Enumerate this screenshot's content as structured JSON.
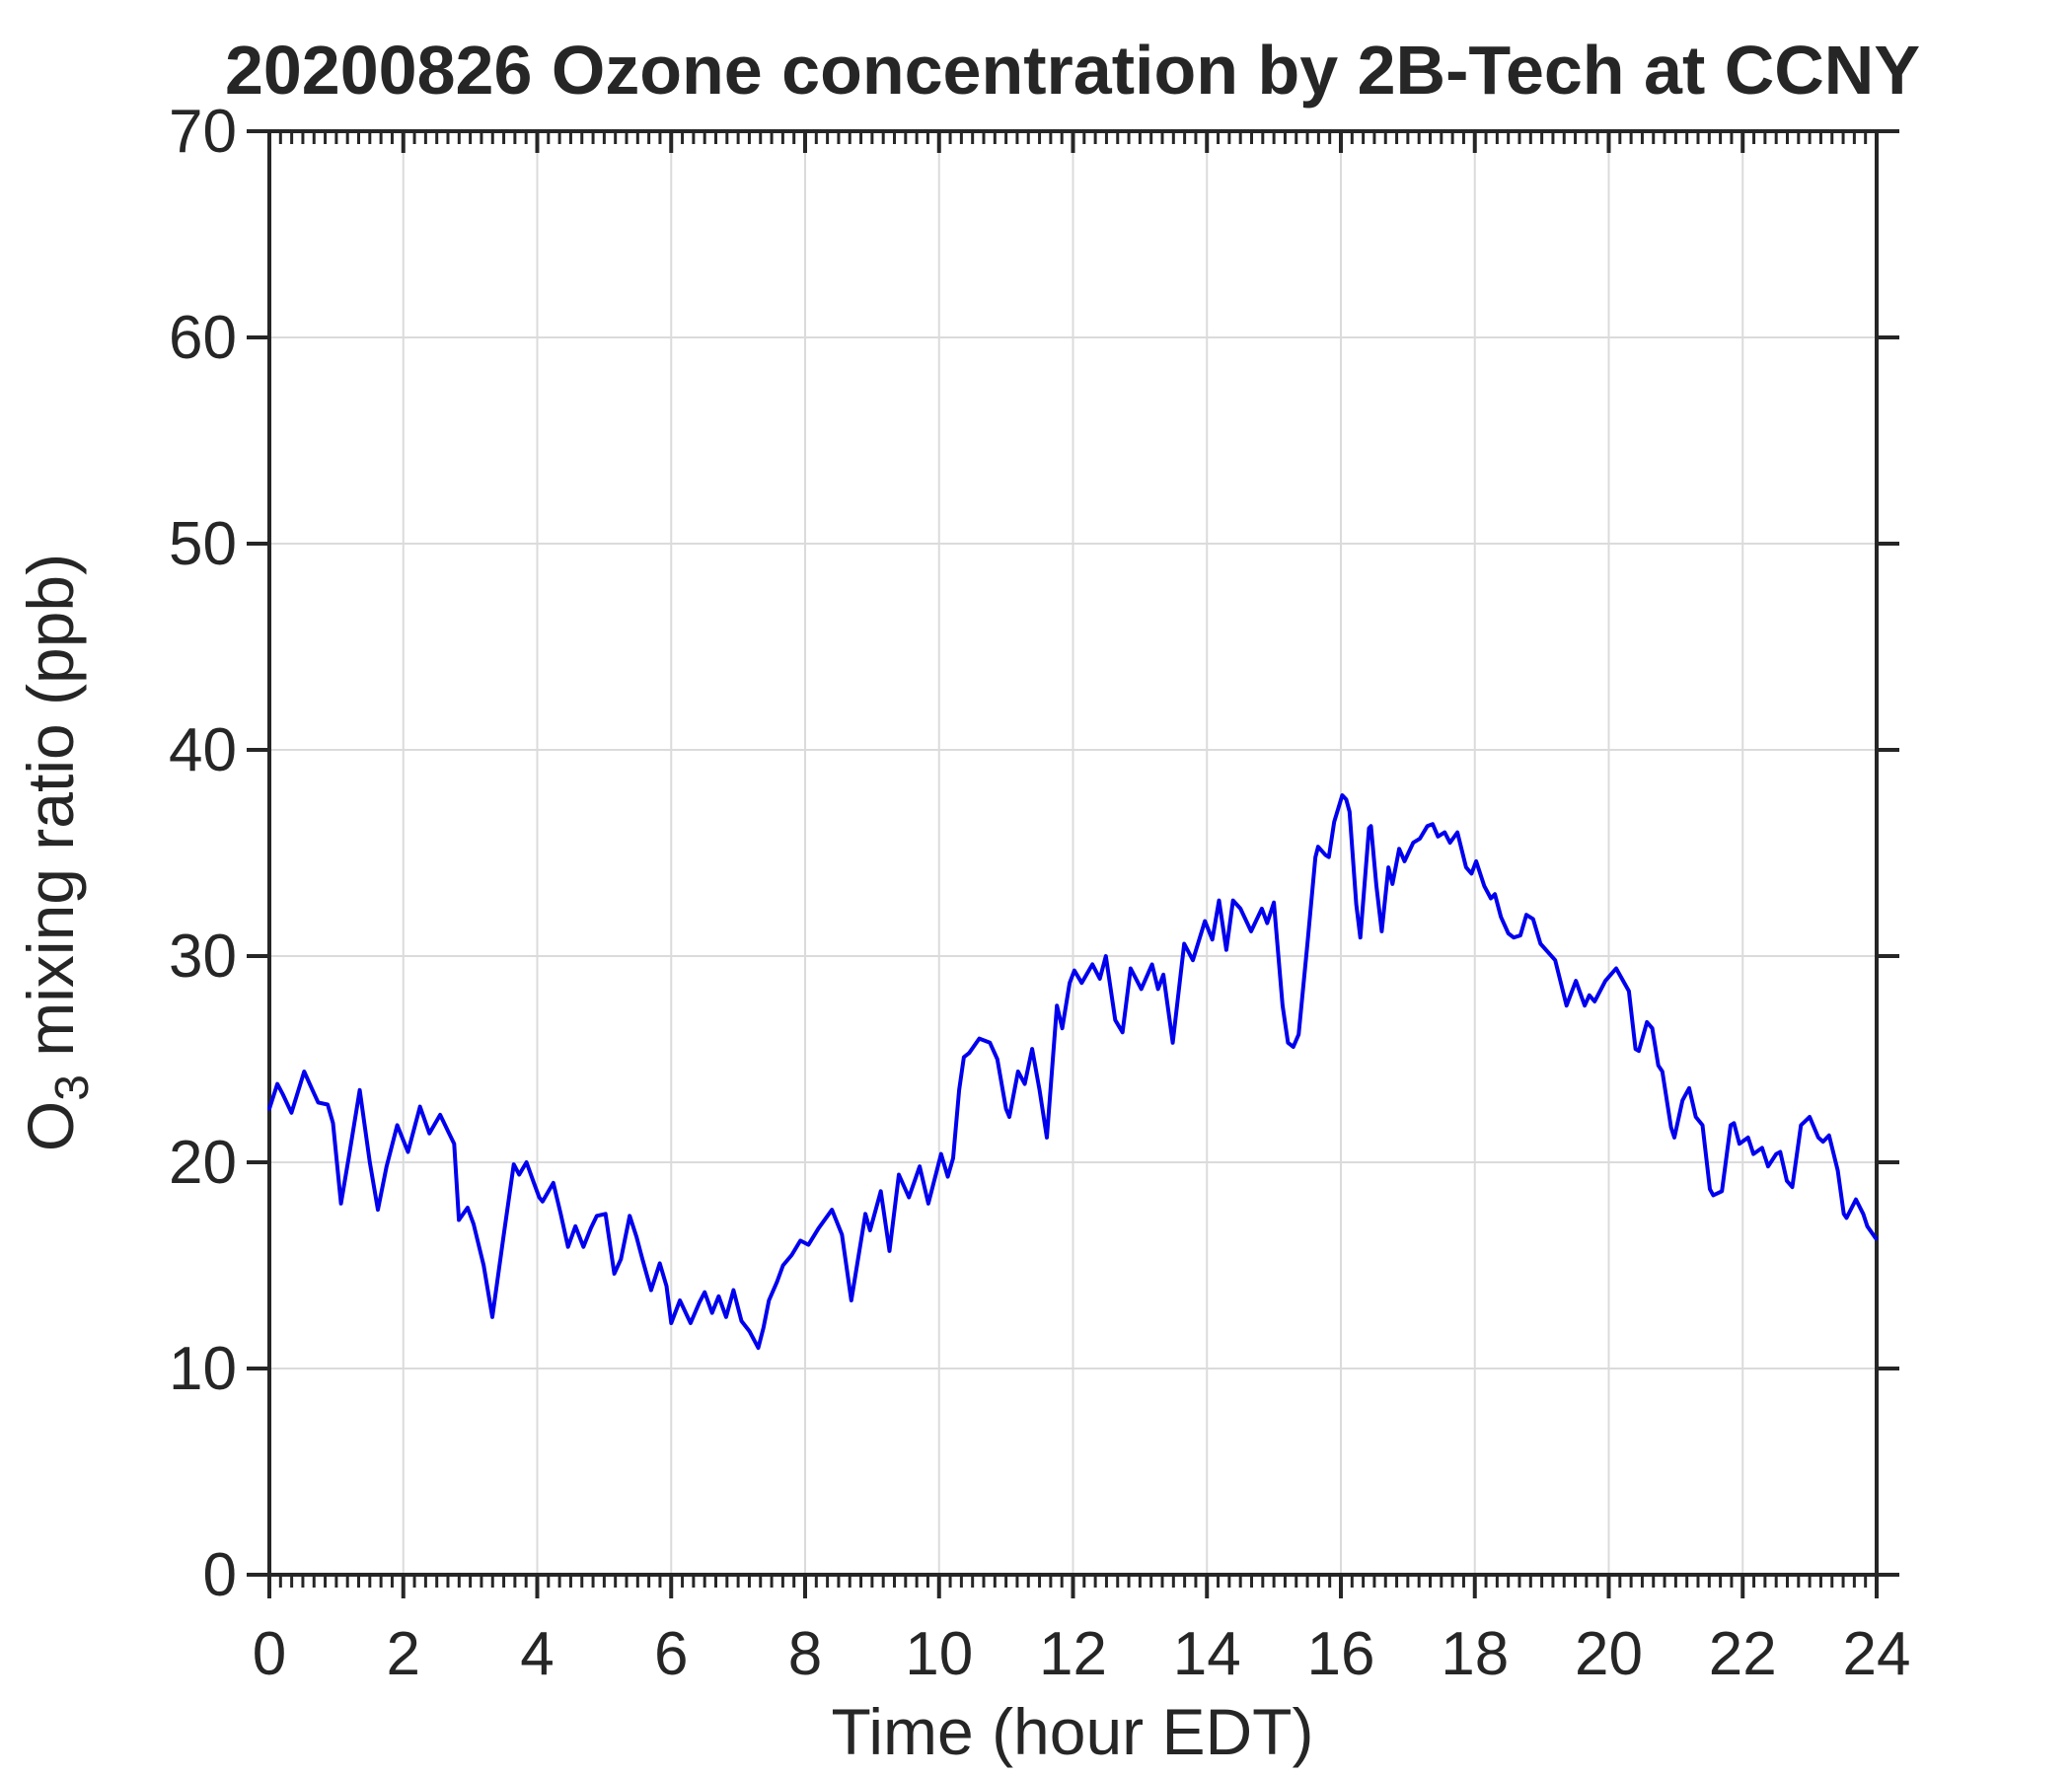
{
  "chart_data": {
    "type": "line",
    "title": "20200826 Ozone concentration by 2B-Tech at CCNY",
    "xlabel": "Time (hour EDT)",
    "ylabel": "O3 mixing ratio (ppb)",
    "ylabel_parts": {
      "prefix": "O",
      "sub": "3",
      "suffix": " mixing ratio (ppb)"
    },
    "xlim": [
      0,
      24
    ],
    "ylim": [
      0,
      70
    ],
    "xticks": [
      0,
      2,
      4,
      6,
      8,
      10,
      12,
      14,
      16,
      18,
      20,
      22,
      24
    ],
    "yticks": [
      0,
      10,
      20,
      30,
      40,
      50,
      60,
      70
    ],
    "x_minor_ticks_per_hour": 6,
    "grid": true,
    "legend_position": "none",
    "colors": {
      "line": "#0000EE",
      "grid": "#DBDBDB",
      "axis": "#262626",
      "text": "#262626",
      "background": "#FFFFFF"
    },
    "series": [
      {
        "name": "O3 mixing ratio",
        "x": [
          0.0,
          0.12,
          0.2,
          0.33,
          0.52,
          0.63,
          0.73,
          0.87,
          0.95,
          1.07,
          1.2,
          1.35,
          1.5,
          1.62,
          1.75,
          1.91,
          2.07,
          2.25,
          2.39,
          2.55,
          2.67,
          2.76,
          2.83,
          2.96,
          3.05,
          3.2,
          3.33,
          3.5,
          3.65,
          3.73,
          3.84,
          3.95,
          4.03,
          4.08,
          4.24,
          4.35,
          4.46,
          4.57,
          4.69,
          4.8,
          4.89,
          5.02,
          5.15,
          5.25,
          5.38,
          5.48,
          5.57,
          5.7,
          5.83,
          5.93,
          6.0,
          6.13,
          6.29,
          6.42,
          6.5,
          6.61,
          6.71,
          6.82,
          6.93,
          7.05,
          7.17,
          7.3,
          7.38,
          7.46,
          7.58,
          7.67,
          7.8,
          7.93,
          8.05,
          8.2,
          8.4,
          8.55,
          8.69,
          8.8,
          8.9,
          8.97,
          9.13,
          9.26,
          9.4,
          9.55,
          9.71,
          9.84,
          10.03,
          10.13,
          10.21,
          10.3,
          10.37,
          10.45,
          10.6,
          10.76,
          10.87,
          11.0,
          11.05,
          11.18,
          11.28,
          11.39,
          11.5,
          11.61,
          11.76,
          11.84,
          11.95,
          12.02,
          12.13,
          12.29,
          12.4,
          12.49,
          12.63,
          12.74,
          12.86,
          13.02,
          13.18,
          13.27,
          13.35,
          13.49,
          13.66,
          13.79,
          13.97,
          14.08,
          14.18,
          14.29,
          14.39,
          14.5,
          14.66,
          14.82,
          14.9,
          15.0,
          15.13,
          15.21,
          15.29,
          15.37,
          15.5,
          15.62,
          15.66,
          15.77,
          15.82,
          15.9,
          16.02,
          16.08,
          16.13,
          16.23,
          16.29,
          16.42,
          16.45,
          16.53,
          16.61,
          16.71,
          16.77,
          16.87,
          16.95,
          17.08,
          17.18,
          17.29,
          17.37,
          17.45,
          17.55,
          17.63,
          17.74,
          17.87,
          17.95,
          18.02,
          18.14,
          18.24,
          18.3,
          18.39,
          18.5,
          18.58,
          18.68,
          18.77,
          18.87,
          18.98,
          19.2,
          19.37,
          19.51,
          19.64,
          19.71,
          19.79,
          19.95,
          20.11,
          20.3,
          20.4,
          20.45,
          20.57,
          20.65,
          20.74,
          20.8,
          20.93,
          20.98,
          21.1,
          21.2,
          21.3,
          21.4,
          21.51,
          21.56,
          21.69,
          21.82,
          21.87,
          21.95,
          22.08,
          22.16,
          22.29,
          22.38,
          22.5,
          22.56,
          22.66,
          22.74,
          22.87,
          23.0,
          23.13,
          23.2,
          23.29,
          23.42,
          23.51,
          23.55,
          23.69,
          23.8,
          23.86,
          23.99
        ],
        "y": [
          22.6,
          23.8,
          23.3,
          22.4,
          24.4,
          23.6,
          22.9,
          22.8,
          21.9,
          18.0,
          20.5,
          23.5,
          20.0,
          17.7,
          19.8,
          21.8,
          20.5,
          22.7,
          21.4,
          22.3,
          21.5,
          20.9,
          17.2,
          17.8,
          17.0,
          15.0,
          12.5,
          16.5,
          19.9,
          19.4,
          20.0,
          19.0,
          18.3,
          18.1,
          19.0,
          17.5,
          15.9,
          16.9,
          15.9,
          16.8,
          17.4,
          17.5,
          14.6,
          15.3,
          17.4,
          16.4,
          15.3,
          13.8,
          15.1,
          14.0,
          12.2,
          13.3,
          12.2,
          13.2,
          13.7,
          12.7,
          13.5,
          12.5,
          13.8,
          12.3,
          11.8,
          11.0,
          12.0,
          13.3,
          14.2,
          15.0,
          15.5,
          16.2,
          16.0,
          16.8,
          17.7,
          16.5,
          13.3,
          15.5,
          17.5,
          16.7,
          18.6,
          15.7,
          19.4,
          18.3,
          19.8,
          18.0,
          20.4,
          19.3,
          20.2,
          23.5,
          25.1,
          25.3,
          26.0,
          25.8,
          25.0,
          22.6,
          22.2,
          24.4,
          23.8,
          25.5,
          23.5,
          21.2,
          27.6,
          26.5,
          28.7,
          29.3,
          28.7,
          29.6,
          28.9,
          30.0,
          26.9,
          26.3,
          29.4,
          28.4,
          29.6,
          28.4,
          29.1,
          25.8,
          30.6,
          29.8,
          31.7,
          30.8,
          32.7,
          30.3,
          32.7,
          32.3,
          31.2,
          32.3,
          31.6,
          32.6,
          27.6,
          25.8,
          25.6,
          26.2,
          30.6,
          34.8,
          35.3,
          34.9,
          34.8,
          36.5,
          37.8,
          37.6,
          37.0,
          32.5,
          30.9,
          36.2,
          36.3,
          33.4,
          31.2,
          34.3,
          33.5,
          35.2,
          34.6,
          35.5,
          35.7,
          36.3,
          36.4,
          35.8,
          36.0,
          35.5,
          36.0,
          34.3,
          34.0,
          34.6,
          33.4,
          32.8,
          33.0,
          31.9,
          31.1,
          30.9,
          31.0,
          32.0,
          31.8,
          30.6,
          29.8,
          27.6,
          28.8,
          27.6,
          28.1,
          27.8,
          28.8,
          29.4,
          28.3,
          25.5,
          25.4,
          26.8,
          26.5,
          24.7,
          24.4,
          21.7,
          21.2,
          23.0,
          23.6,
          22.2,
          21.8,
          18.7,
          18.4,
          18.6,
          21.8,
          21.9,
          20.9,
          21.2,
          20.4,
          20.7,
          19.8,
          20.4,
          20.5,
          19.1,
          18.8,
          21.8,
          22.2,
          21.2,
          21.0,
          21.3,
          19.6,
          17.5,
          17.3,
          18.2,
          17.5,
          16.9,
          16.3
        ]
      }
    ]
  }
}
